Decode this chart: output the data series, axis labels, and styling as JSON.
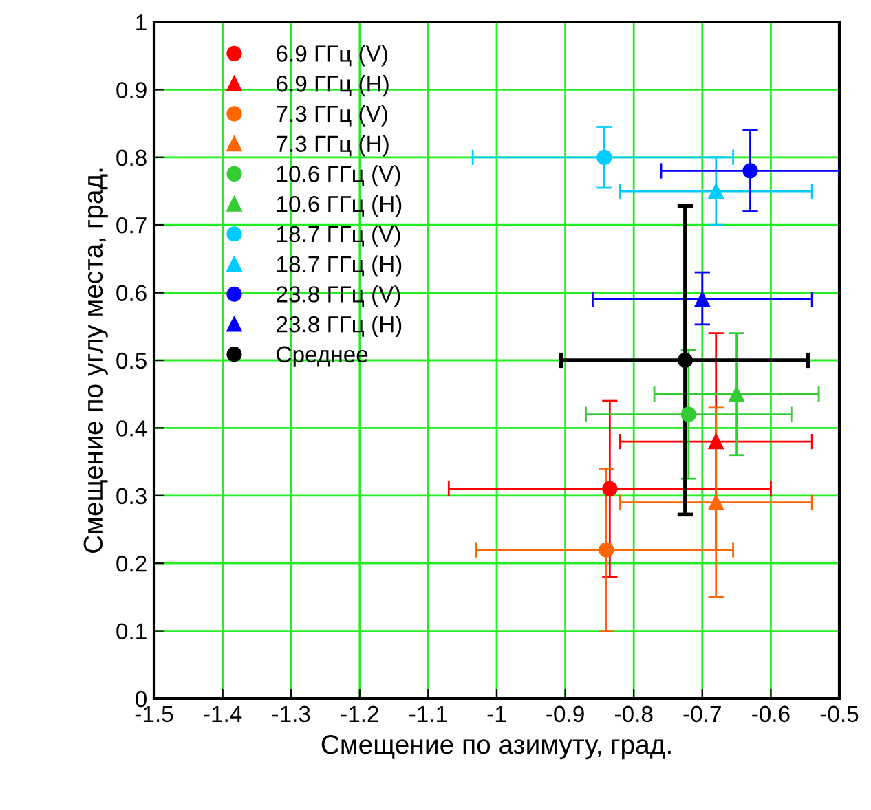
{
  "chart_data": {
    "type": "scatter",
    "xlabel": "Смещение по азимуту, град.",
    "ylabel": "Смещение по углу места, град.",
    "xlim": [
      -1.5,
      -0.5
    ],
    "xticks": [
      -1.5,
      -1.4,
      -1.3,
      -1.2,
      -1.1,
      -1,
      -0.9,
      -0.8,
      -0.7,
      -0.6,
      -0.5
    ],
    "ylim": [
      0,
      1
    ],
    "yticks": [
      0,
      0.1,
      0.2,
      0.3,
      0.4,
      0.5,
      0.6,
      0.7,
      0.8,
      0.9,
      1
    ],
    "grid": true,
    "legend": "top left",
    "series": [
      {
        "name": "6.9 ГГц (V)",
        "color": "#ff0000",
        "marker": "circle",
        "x": [
          -0.835
        ],
        "values": [
          0.31
        ],
        "xerrors": [
          [
            -1.07,
            -0.6
          ]
        ],
        "errors": [
          [
            0.18,
            0.44
          ]
        ]
      },
      {
        "name": "6.9 ГГц (H)",
        "color": "#ff0000",
        "marker": "triangle",
        "x": [
          -0.68
        ],
        "values": [
          0.38
        ],
        "xerrors": [
          [
            -0.82,
            -0.54
          ]
        ],
        "errors": [
          [
            0.22,
            0.54
          ]
        ]
      },
      {
        "name": "7.3 ГГц (V)",
        "color": "#ff6600",
        "marker": "circle",
        "x": [
          -0.84
        ],
        "values": [
          0.22
        ],
        "xerrors": [
          [
            -1.03,
            -0.655
          ]
        ],
        "errors": [
          [
            0.1,
            0.34
          ]
        ]
      },
      {
        "name": "7.3 ГГц (H)",
        "color": "#ff6600",
        "marker": "triangle",
        "x": [
          -0.68
        ],
        "values": [
          0.29
        ],
        "xerrors": [
          [
            -0.82,
            -0.54
          ]
        ],
        "errors": [
          [
            0.15,
            0.43
          ]
        ]
      },
      {
        "name": "10.6 ГГц (V)",
        "color": "#33cc33",
        "marker": "circle",
        "x": [
          -0.72
        ],
        "values": [
          0.42
        ],
        "xerrors": [
          [
            -0.87,
            -0.57
          ]
        ],
        "errors": [
          [
            0.325,
            0.515
          ]
        ]
      },
      {
        "name": "10.6 ГГц (H)",
        "color": "#33cc33",
        "marker": "triangle",
        "x": [
          -0.65
        ],
        "values": [
          0.45
        ],
        "xerrors": [
          [
            -0.77,
            -0.53
          ]
        ],
        "errors": [
          [
            0.36,
            0.54
          ]
        ]
      },
      {
        "name": "18.7 ГГц (V)",
        "color": "#00ccff",
        "marker": "circle",
        "x": [
          -0.843
        ],
        "values": [
          0.8
        ],
        "xerrors": [
          [
            -1.035,
            -0.655
          ]
        ],
        "errors": [
          [
            0.755,
            0.845
          ]
        ]
      },
      {
        "name": "18.7 ГГц (H)",
        "color": "#00ccff",
        "marker": "triangle",
        "x": [
          -0.68
        ],
        "values": [
          0.75
        ],
        "xerrors": [
          [
            -0.82,
            -0.54
          ]
        ],
        "errors": [
          [
            0.7,
            0.8
          ]
        ]
      },
      {
        "name": "23.8 ГГц (V)",
        "color": "#0000ff",
        "marker": "circle",
        "x": [
          -0.63
        ],
        "values": [
          0.78
        ],
        "xerrors": [
          [
            -0.76,
            -0.5
          ]
        ],
        "errors": [
          [
            0.72,
            0.84
          ]
        ]
      },
      {
        "name": "23.8 ГГц (H)",
        "color": "#0000ff",
        "marker": "triangle",
        "x": [
          -0.7
        ],
        "values": [
          0.59
        ],
        "xerrors": [
          [
            -0.86,
            -0.54
          ]
        ],
        "errors": [
          [
            0.553,
            0.63
          ]
        ]
      },
      {
        "name": "Среднее",
        "color": "#000000",
        "marker": "circle",
        "x": [
          -0.725
        ],
        "values": [
          0.5
        ],
        "xerrors": [
          [
            -0.906,
            -0.546
          ]
        ],
        "errors": [
          [
            0.272,
            0.728
          ]
        ]
      }
    ]
  }
}
